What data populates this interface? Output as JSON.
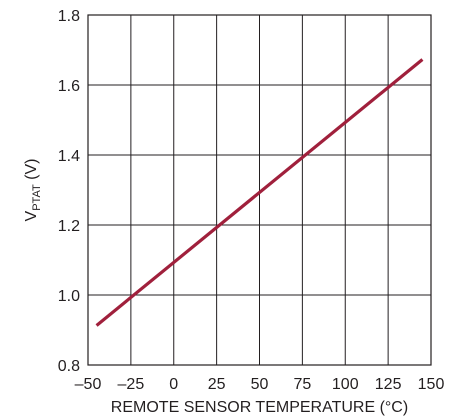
{
  "chart_data": {
    "type": "line",
    "title": "",
    "xlabel": "REMOTE SENSOR TEMPERATURE (°C)",
    "ylabel": {
      "main": "V",
      "subscript": "PTAT",
      "suffix": " (V)"
    },
    "xlim": [
      -50,
      150
    ],
    "ylim": [
      0.8,
      1.8
    ],
    "xticks": [
      -50,
      -25,
      0,
      25,
      50,
      75,
      100,
      125,
      150
    ],
    "xtick_labels": [
      "–50",
      "–25",
      "0",
      "25",
      "50",
      "75",
      "100",
      "125",
      "150"
    ],
    "yticks": [
      0.8,
      1.0,
      1.2,
      1.4,
      1.6,
      1.8
    ],
    "ytick_labels": [
      "0.8",
      "1.0",
      "1.2",
      "1.4",
      "1.6",
      "1.8"
    ],
    "grid": true,
    "series": [
      {
        "color": "#a0203c",
        "x": [
          -45,
          145
        ],
        "y": [
          0.913,
          1.673
        ]
      }
    ]
  }
}
